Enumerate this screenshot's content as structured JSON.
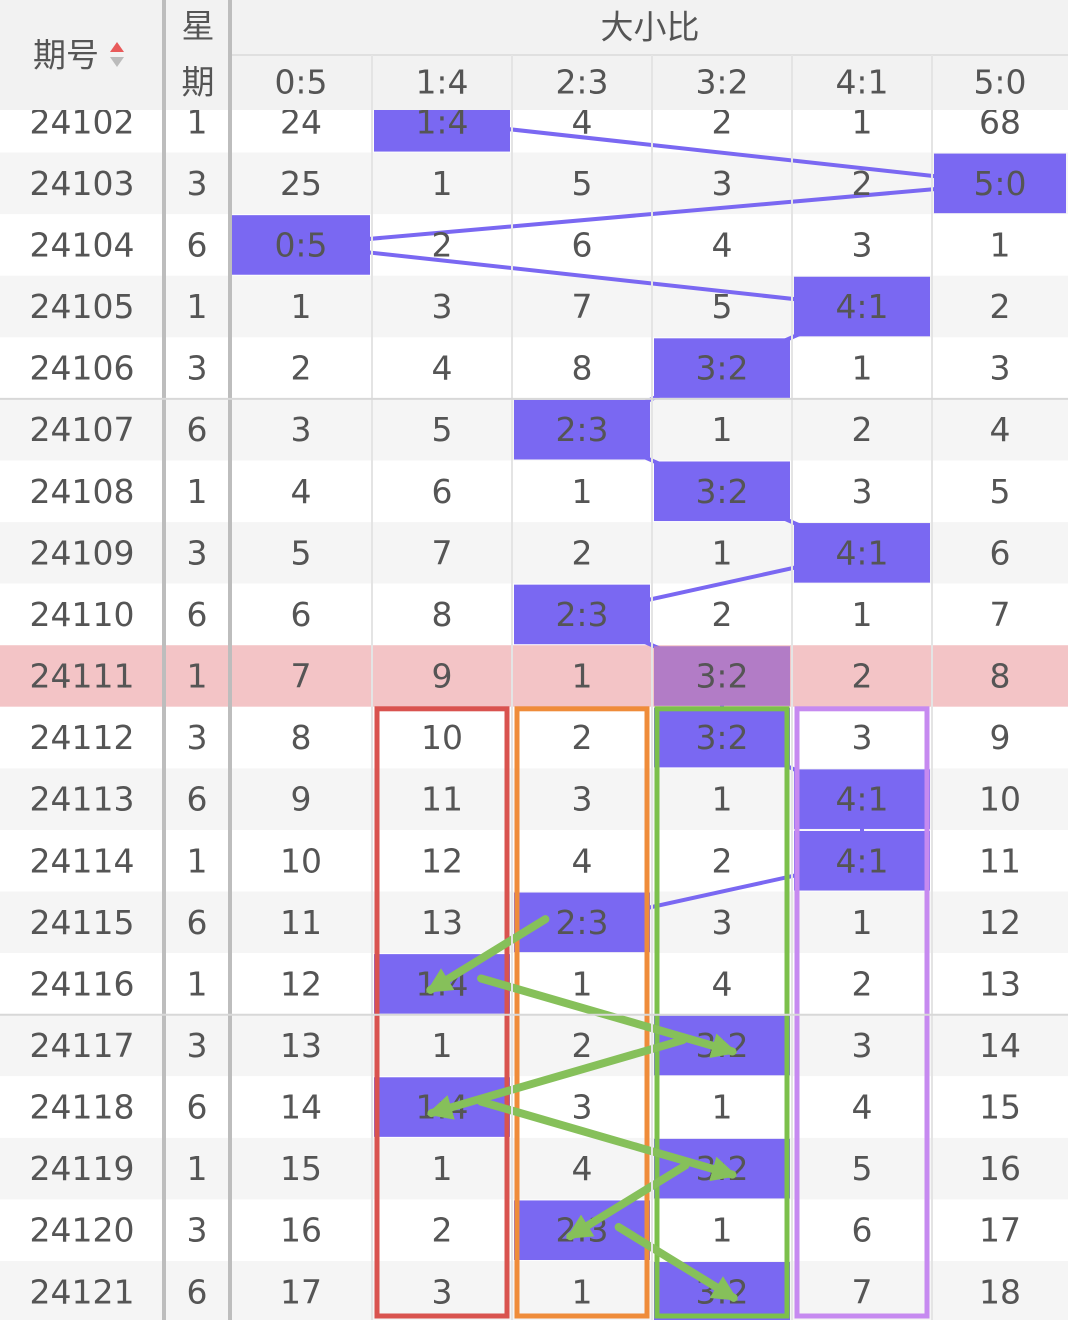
{
  "header": {
    "period": "期号",
    "weekday": [
      "星",
      "期"
    ],
    "group": "大小比",
    "columns": [
      "0:5",
      "1:4",
      "2:3",
      "3:2",
      "4:1",
      "5:0"
    ]
  },
  "rows": [
    {
      "period": 24102,
      "weekday": 1,
      "cells": [
        24,
        "1:4",
        4,
        2,
        1,
        68
      ]
    },
    {
      "period": 24103,
      "weekday": 3,
      "cells": [
        25,
        1,
        5,
        3,
        2,
        "5:0"
      ]
    },
    {
      "period": 24104,
      "weekday": 6,
      "cells": [
        "0:5",
        2,
        6,
        4,
        3,
        1
      ]
    },
    {
      "period": 24105,
      "weekday": 1,
      "cells": [
        1,
        3,
        7,
        5,
        "4:1",
        2
      ]
    },
    {
      "period": 24106,
      "weekday": 3,
      "cells": [
        2,
        4,
        8,
        "3:2",
        1,
        3
      ]
    },
    {
      "period": 24107,
      "weekday": 6,
      "cells": [
        3,
        5,
        "2:3",
        1,
        2,
        4
      ]
    },
    {
      "period": 24108,
      "weekday": 1,
      "cells": [
        4,
        6,
        1,
        "3:2",
        3,
        5
      ]
    },
    {
      "period": 24109,
      "weekday": 3,
      "cells": [
        5,
        7,
        2,
        1,
        "4:1",
        6
      ]
    },
    {
      "period": 24110,
      "weekday": 6,
      "cells": [
        6,
        8,
        "2:3",
        2,
        1,
        7
      ]
    },
    {
      "period": 24111,
      "weekday": 1,
      "cells": [
        7,
        9,
        1,
        "3:2",
        2,
        8
      ]
    },
    {
      "period": 24112,
      "weekday": 3,
      "cells": [
        8,
        10,
        2,
        "3:2",
        3,
        9
      ]
    },
    {
      "period": 24113,
      "weekday": 6,
      "cells": [
        9,
        11,
        3,
        1,
        "4:1",
        10
      ]
    },
    {
      "period": 24114,
      "weekday": 1,
      "cells": [
        10,
        12,
        4,
        2,
        "4:1",
        11
      ]
    },
    {
      "period": 24115,
      "weekday": 6,
      "cells": [
        11,
        13,
        "2:3",
        3,
        1,
        12
      ]
    },
    {
      "period": 24116,
      "weekday": 1,
      "cells": [
        12,
        "1:4",
        1,
        4,
        2,
        13
      ]
    },
    {
      "period": 24117,
      "weekday": 3,
      "cells": [
        13,
        1,
        2,
        "3:2",
        3,
        14
      ]
    },
    {
      "period": 24118,
      "weekday": 6,
      "cells": [
        14,
        "1:4",
        3,
        1,
        4,
        15
      ]
    },
    {
      "period": 24119,
      "weekday": 1,
      "cells": [
        15,
        1,
        4,
        "3:2",
        5,
        16
      ]
    },
    {
      "period": 24120,
      "weekday": 3,
      "cells": [
        16,
        2,
        "2:3",
        1,
        6,
        17
      ]
    },
    {
      "period": 24121,
      "weekday": 6,
      "cells": [
        17,
        3,
        1,
        "3:2",
        7,
        18
      ]
    }
  ]
}
